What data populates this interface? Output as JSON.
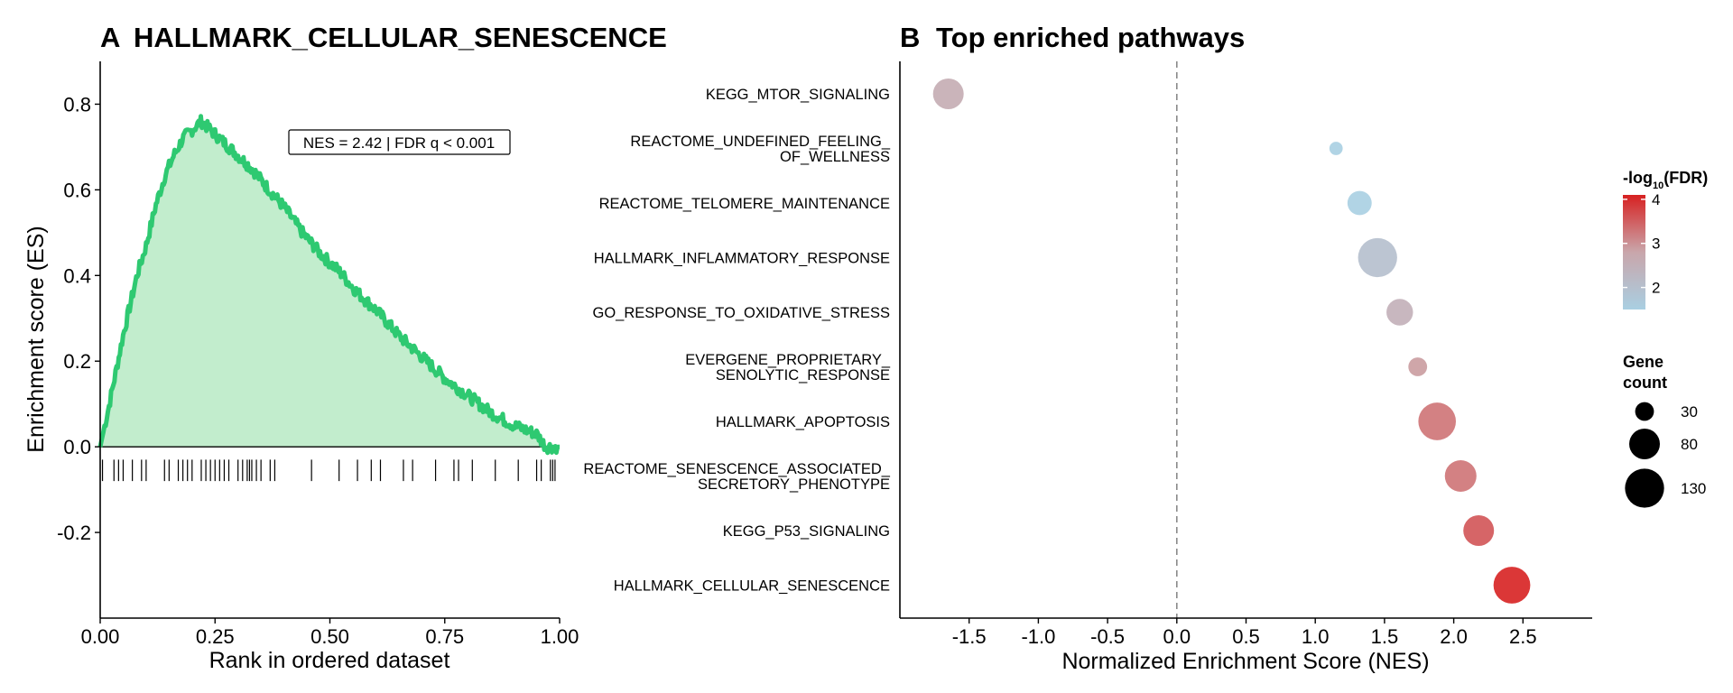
{
  "chart_data": [
    {
      "panel_label": "A",
      "type": "line",
      "title": "HALLMARK_CELLULAR_SENESCENCE",
      "xlabel": "Rank in ordered dataset",
      "ylabel": "Enrichment score (ES)",
      "xlim": [
        0,
        1
      ],
      "ylim": [
        -0.4,
        0.9
      ],
      "x_ticks": [
        "0.00",
        "0.25",
        "0.50",
        "0.75",
        "1.00"
      ],
      "y_ticks": [
        "-0.2",
        "0.0",
        "0.2",
        "0.4",
        "0.6",
        "0.8"
      ],
      "annotation": "NES = 2.42 | FDR q < 0.001",
      "line_color": "#2ec971",
      "fill_color": "#c2edcd",
      "series": [
        {
          "x": [
            0,
            0.02,
            0.05,
            0.08,
            0.1,
            0.12,
            0.14,
            0.16,
            0.18,
            0.2,
            0.22,
            0.24,
            0.27,
            0.3,
            0.33,
            0.36,
            0.4,
            0.44,
            0.48,
            0.52,
            0.56,
            0.6,
            0.65,
            0.7,
            0.75,
            0.8,
            0.85,
            0.9,
            0.95,
            0.97,
            1.0
          ],
          "values": [
            0,
            0.1,
            0.26,
            0.4,
            0.47,
            0.56,
            0.63,
            0.68,
            0.72,
            0.74,
            0.76,
            0.74,
            0.71,
            0.68,
            0.65,
            0.61,
            0.56,
            0.5,
            0.45,
            0.41,
            0.36,
            0.32,
            0.26,
            0.21,
            0.16,
            0.12,
            0.08,
            0.05,
            0.03,
            0.0,
            0.0
          ]
        }
      ],
      "hit_positions": [
        0.005,
        0.03,
        0.04,
        0.05,
        0.07,
        0.09,
        0.1,
        0.14,
        0.15,
        0.17,
        0.18,
        0.19,
        0.2,
        0.22,
        0.23,
        0.24,
        0.25,
        0.26,
        0.27,
        0.28,
        0.3,
        0.31,
        0.32,
        0.325,
        0.33,
        0.34,
        0.35,
        0.37,
        0.38,
        0.46,
        0.52,
        0.56,
        0.59,
        0.61,
        0.66,
        0.68,
        0.73,
        0.77,
        0.78,
        0.81,
        0.86,
        0.91,
        0.95,
        0.96,
        0.98,
        0.985,
        0.99
      ]
    },
    {
      "panel_label": "B",
      "type": "scatter",
      "title": "Top enriched pathways",
      "xlabel": "Normalized Enrichment Score (NES)",
      "ylabel": "",
      "xlim": [
        -2.0,
        3.0
      ],
      "x_ticks": [
        "-1.5",
        "-1.0",
        "-0.5",
        "0.0",
        "0.5",
        "1.0",
        "1.5",
        "2.0",
        "2.5"
      ],
      "reference_line": 0,
      "categories": [
        "KEGG_MTOR_SIGNALING",
        "REACTOME_UNDEFINED_FEELING_\nOF_WELLNESS",
        "REACTOME_TELOMERE_MAINTENANCE",
        "HALLMARK_INFLAMMATORY_RESPONSE",
        "GO_RESPONSE_TO_OXIDATIVE_STRESS",
        "EVERGENE_PROPRIETARY_\nSENOLYTIC_RESPONSE",
        "HALLMARK_APOPTOSIS",
        "REACTOME_SENESCENCE_ASSOCIATED_\nSECRETORY_PHENOTYPE",
        "KEGG_P53_SIGNALING",
        "HALLMARK_CELLULAR_SENESCENCE"
      ],
      "nes": [
        -1.65,
        1.15,
        1.32,
        1.45,
        1.61,
        1.74,
        1.88,
        2.05,
        2.18,
        2.42
      ],
      "neg_log10_fdr": [
        2.6,
        1.5,
        1.5,
        2.0,
        2.5,
        2.9,
        3.3,
        3.3,
        3.6,
        4.1
      ],
      "gene_count": [
        80,
        15,
        50,
        130,
        60,
        30,
        120,
        85,
        80,
        115
      ],
      "color_legend": {
        "title_prefix": "-log",
        "title_sub": "10",
        "title_suffix": "(FDR)",
        "ticks": [
          "2",
          "3",
          "4"
        ],
        "range": [
          1.5,
          4.1
        ],
        "low_color": "#a9cfe2",
        "mid_color": "#c9a6ab",
        "high_color": "#d72121"
      },
      "size_legend": {
        "title_line1": "Gene",
        "title_line2": "count",
        "values": [
          30,
          80,
          130
        ],
        "labels": [
          "30",
          "80",
          "130"
        ]
      }
    }
  ]
}
